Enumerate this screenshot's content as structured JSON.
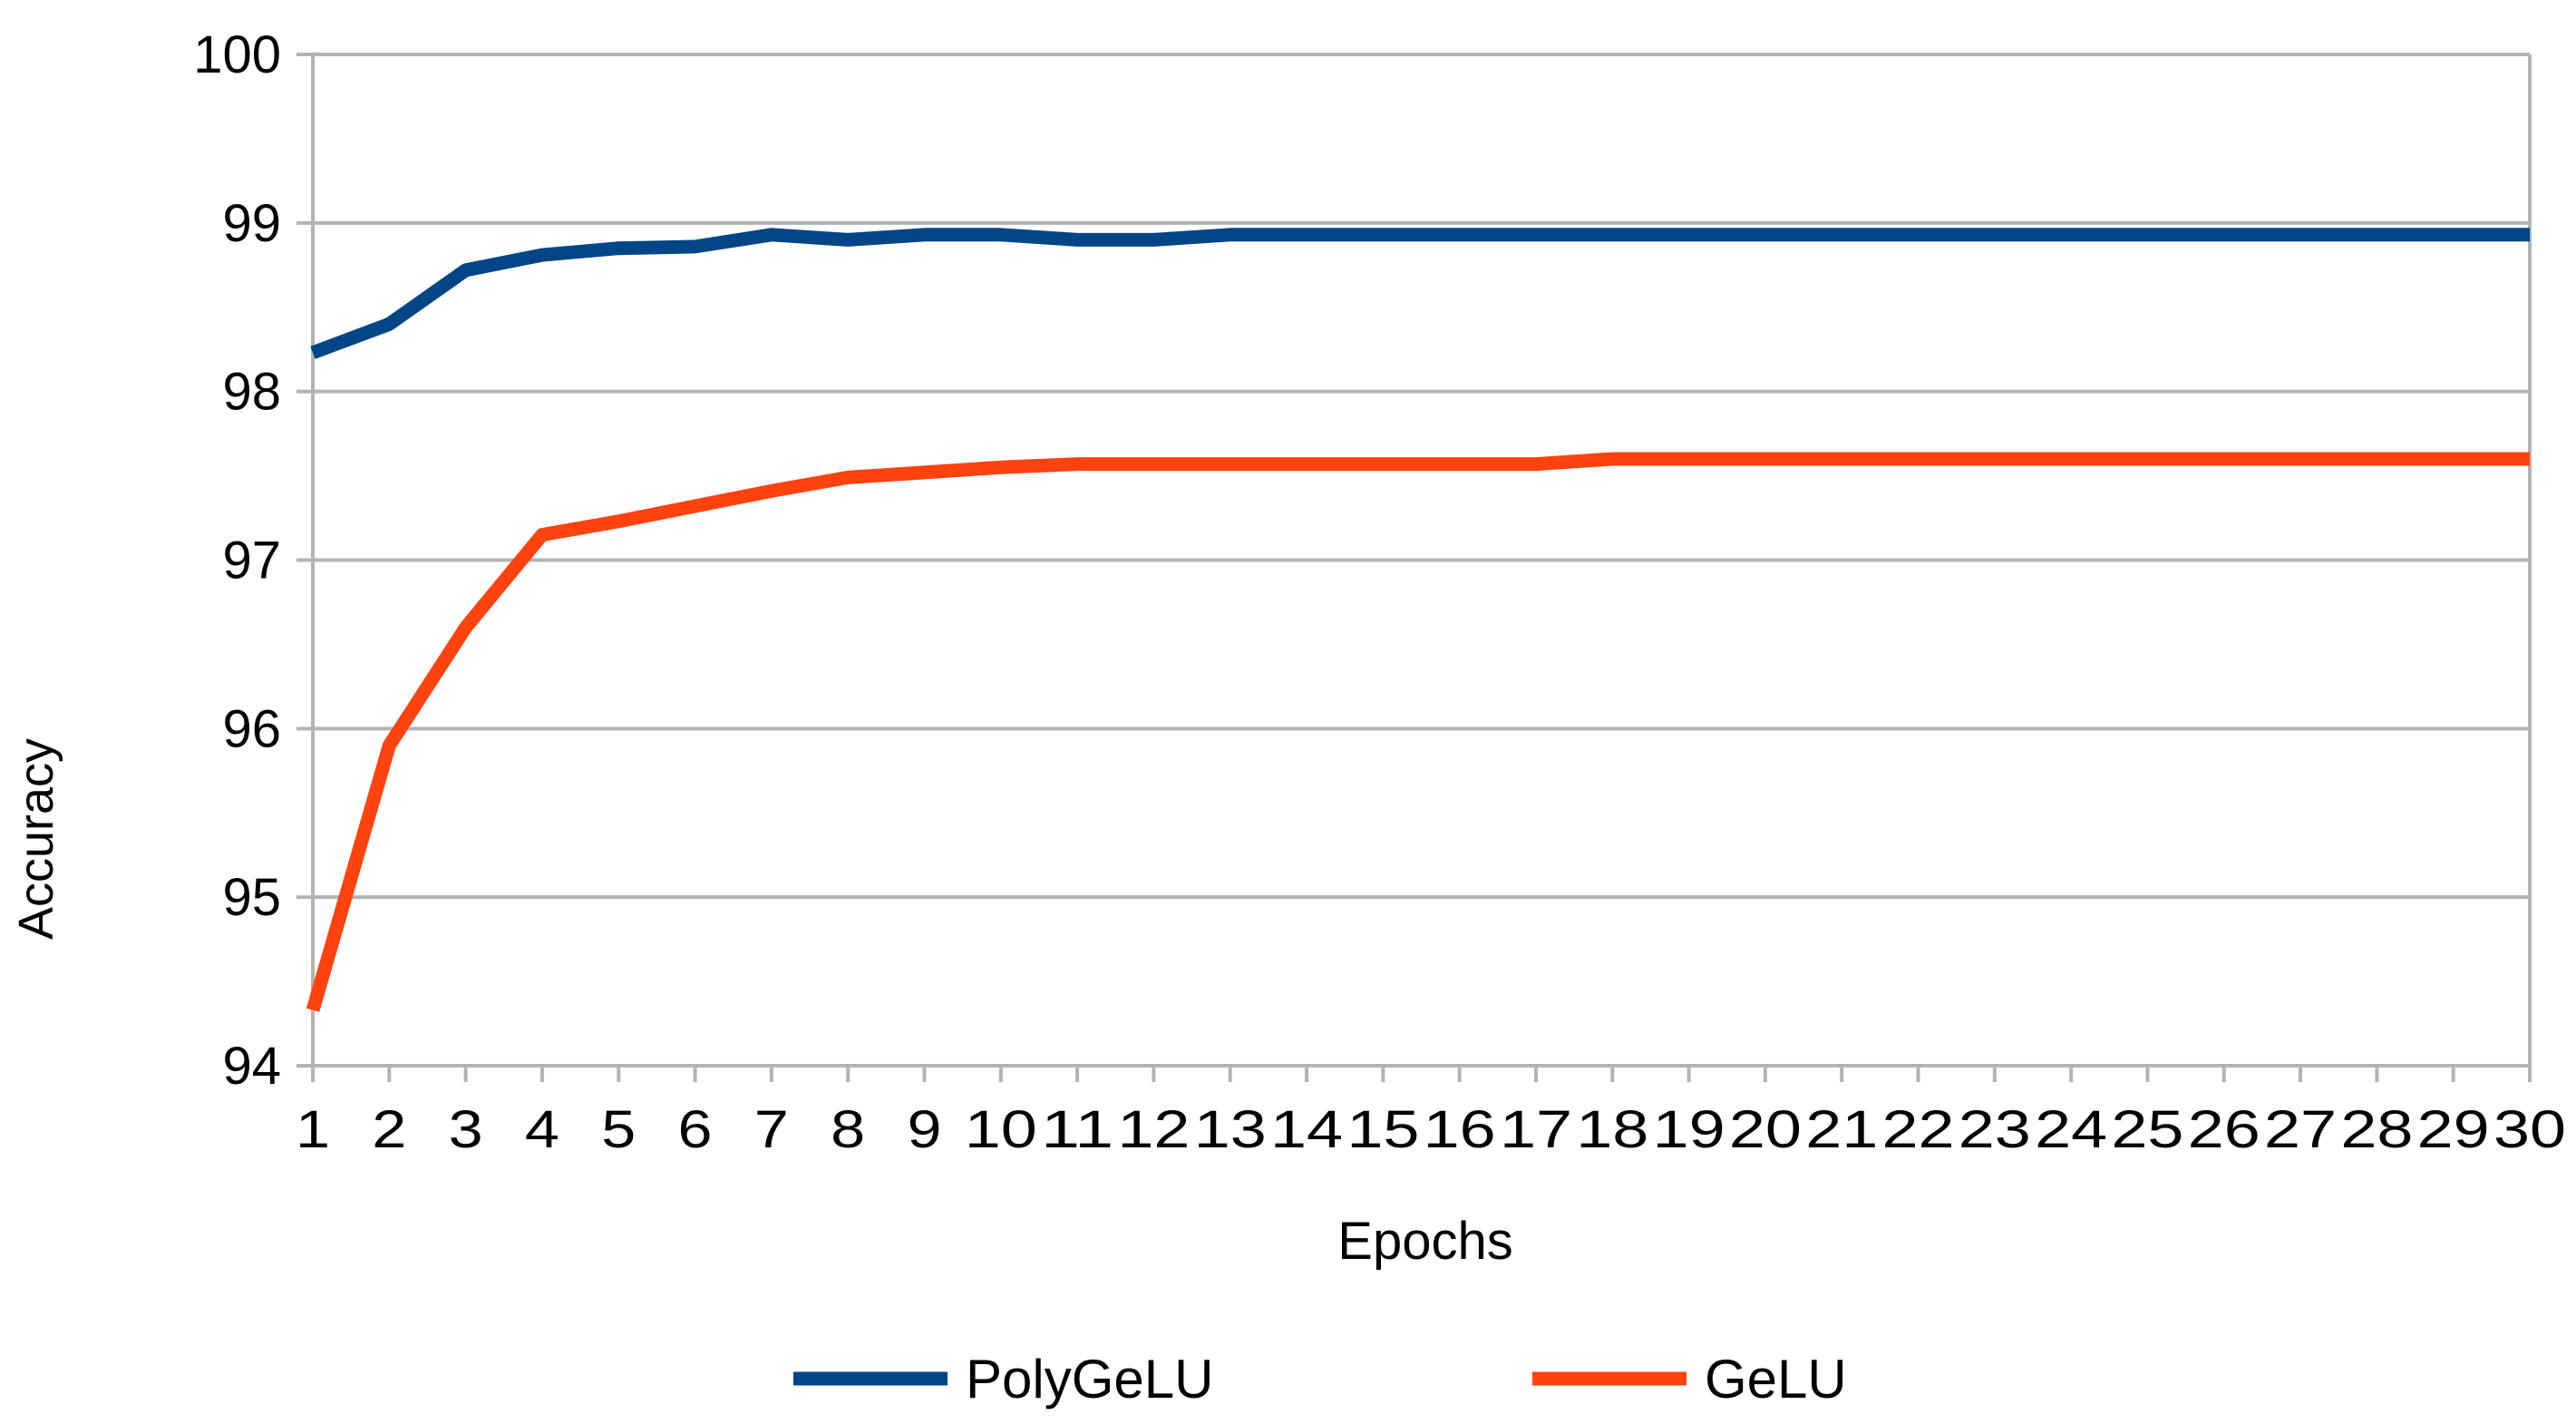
{
  "chart_data": {
    "type": "line",
    "title": "",
    "xlabel": "Epochs",
    "ylabel": "Accuracy",
    "categories": [
      "1",
      "2",
      "3",
      "4",
      "5",
      "6",
      "7",
      "8",
      "9",
      "10",
      "11",
      "12",
      "13",
      "14",
      "15",
      "16",
      "17",
      "18",
      "19",
      "20",
      "21",
      "22",
      "23",
      "24",
      "25",
      "26",
      "27",
      "28",
      "29",
      "30"
    ],
    "yticks": [
      "94",
      "95",
      "96",
      "97",
      "98",
      "99",
      "100"
    ],
    "ylim": [
      94,
      100
    ],
    "grid": "horizontal",
    "legend_position": "bottom",
    "series": [
      {
        "name": "PolyGeLU",
        "color": "#004586",
        "values": [
          98.23,
          98.4,
          98.72,
          98.81,
          98.85,
          98.86,
          98.93,
          98.9,
          98.93,
          98.93,
          98.9,
          98.9,
          98.93,
          98.93,
          98.93,
          98.93,
          98.93,
          98.93,
          98.93,
          98.93,
          98.93,
          98.93,
          98.93,
          98.93,
          98.93,
          98.93,
          98.93,
          98.93,
          98.93,
          98.93
        ]
      },
      {
        "name": "GeLU",
        "color": "#ff420e",
        "values": [
          94.33,
          95.9,
          96.6,
          97.15,
          97.23,
          97.32,
          97.41,
          97.49,
          97.52,
          97.55,
          97.57,
          97.57,
          97.57,
          97.57,
          97.57,
          97.57,
          97.57,
          97.6,
          97.6,
          97.6,
          97.6,
          97.6,
          97.6,
          97.6,
          97.6,
          97.6,
          97.6,
          97.6,
          97.6,
          97.6
        ]
      }
    ]
  }
}
